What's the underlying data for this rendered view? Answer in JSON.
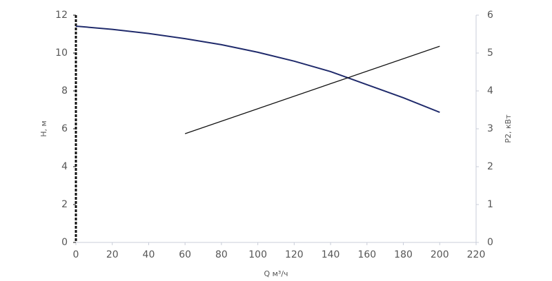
{
  "chart_data": {
    "type": "line",
    "xlabel": "Q м³/ч",
    "ylabel": "H, м",
    "y2label": "P2, кВт",
    "xlim": [
      0,
      220
    ],
    "xticks": [
      0,
      20,
      40,
      60,
      80,
      100,
      120,
      140,
      160,
      180,
      200,
      220
    ],
    "ylim": [
      0,
      12
    ],
    "yticks": [
      0,
      2,
      4,
      6,
      8,
      10,
      12
    ],
    "y2lim": [
      0,
      6
    ],
    "y2ticks": [
      0,
      1,
      2,
      3,
      4,
      5,
      6
    ],
    "grid": false,
    "series": [
      {
        "color": "#1f2a6b",
        "x": [
          0,
          20,
          40,
          60,
          80,
          100,
          120,
          140,
          160,
          180,
          200
        ],
        "values": [
          11.42,
          11.25,
          11.03,
          10.76,
          10.44,
          10.04,
          9.57,
          9.02,
          8.33,
          7.64,
          6.87
        ]
      },
      {
        "color": "#111111",
        "axis": "y2",
        "x": [
          60,
          100,
          140,
          200
        ],
        "values": [
          2.87,
          3.53,
          4.19,
          5.18
        ]
      }
    ]
  }
}
